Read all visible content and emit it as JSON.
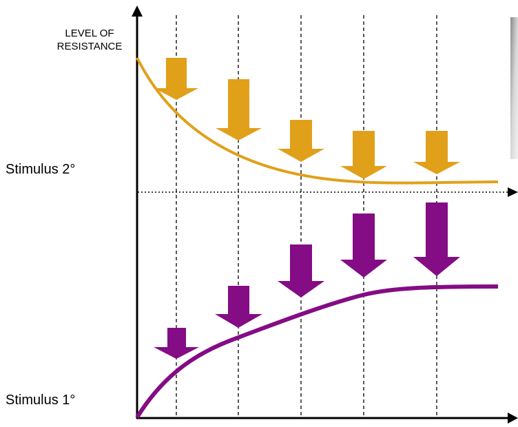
{
  "y_axis_label_line1": "LEVEL OF",
  "y_axis_label_line2": "RESISTANCE",
  "stimulus_upper": "Stimulus 2°",
  "stimulus_lower": "Stimulus 1°",
  "colors": {
    "upper_curve": "#E1A01A",
    "lower_curve": "#840C85",
    "axis": "#000000"
  }
}
